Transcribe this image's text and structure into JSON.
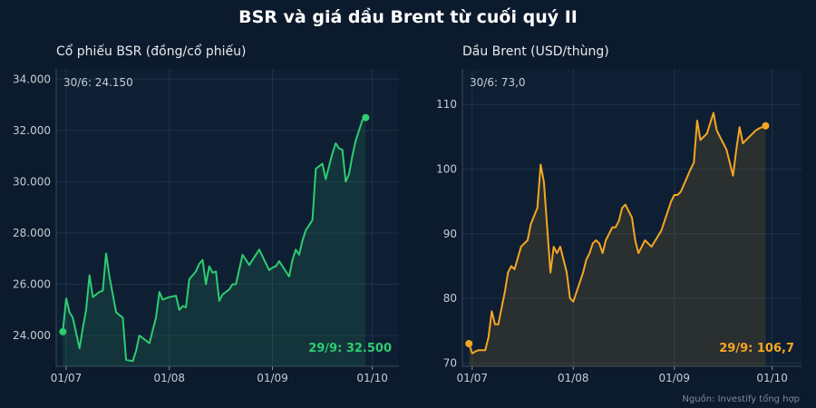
{
  "title": "BSR và giá dầu Brent từ cuối quý II",
  "source": "Nguồn: Investify tổng hợp",
  "chart_data": [
    {
      "type": "area",
      "title": "Cổ phiếu BSR (đồng/cổ phiếu)",
      "color": "#2ecc71",
      "ylim": [
        22800,
        34400
      ],
      "yticks": [
        24000,
        26000,
        28000,
        30000,
        32000,
        34000
      ],
      "ytick_labels": [
        "24.000",
        "26.000",
        "28.000",
        "30.000",
        "32.000",
        "34.000"
      ],
      "xlim": [
        -2,
        101
      ],
      "xticks": [
        1,
        32,
        63,
        93
      ],
      "xtick_labels": [
        "01/07",
        "01/08",
        "01/09",
        "01/10"
      ],
      "grid": true,
      "annotations": {
        "start_label": "30/6: 24.150",
        "end_label": "29/9: 32.500"
      },
      "x": [
        0,
        1,
        2,
        3,
        5,
        6,
        7,
        8,
        9,
        10,
        11,
        12,
        13,
        14,
        16,
        17,
        18,
        19,
        21,
        22,
        23,
        24,
        25,
        26,
        27,
        28,
        29,
        30,
        31,
        32,
        34,
        35,
        36,
        37,
        38,
        39,
        40,
        41,
        42,
        43,
        44,
        45,
        46,
        47,
        48,
        49,
        50,
        51,
        52,
        54,
        56,
        59,
        62,
        63,
        64,
        65,
        68,
        69,
        70,
        71,
        72,
        73,
        75,
        76,
        77,
        78,
        79,
        80,
        81,
        82,
        83,
        84,
        85,
        86,
        87,
        88,
        89,
        90,
        91
      ],
      "y": [
        24150,
        25450,
        24900,
        24700,
        23500,
        24300,
        25000,
        26350,
        25500,
        25600,
        25700,
        25750,
        27200,
        26300,
        24900,
        24800,
        24700,
        23050,
        23000,
        23400,
        24000,
        23900,
        23800,
        23700,
        24200,
        24700,
        25700,
        25400,
        25450,
        25500,
        25550,
        25000,
        25150,
        25100,
        26200,
        26350,
        26500,
        26800,
        26950,
        26000,
        26700,
        26450,
        26500,
        25350,
        25600,
        25700,
        25800,
        26000,
        26000,
        27150,
        26750,
        27350,
        26550,
        26650,
        26700,
        26900,
        26300,
        26950,
        27350,
        27150,
        27700,
        28100,
        28500,
        30500,
        30600,
        30700,
        30100,
        30600,
        31100,
        31500,
        31300,
        31250,
        30000,
        30300,
        31000,
        31600,
        32000,
        32400,
        32500
      ]
    },
    {
      "type": "area",
      "title": "Dầu Brent (USD/thùng)",
      "color": "#f5a623",
      "ylim": [
        69.5,
        115.5
      ],
      "yticks": [
        70,
        80,
        90,
        100,
        110
      ],
      "ytick_labels": [
        "70",
        "80",
        "90",
        "100",
        "110"
      ],
      "xlim": [
        -2,
        102
      ],
      "xticks": [
        1,
        32,
        63,
        93
      ],
      "xtick_labels": [
        "01/07",
        "01/08",
        "01/09",
        "01/10"
      ],
      "grid": true,
      "annotations": {
        "start_label": "30/6: 73,0",
        "end_label": "29/9: 106,7"
      },
      "x": [
        0,
        1,
        2,
        3,
        5,
        6,
        7,
        8,
        9,
        10,
        11,
        12,
        13,
        14,
        16,
        17,
        18,
        19,
        21,
        22,
        23,
        24,
        25,
        26,
        27,
        28,
        29,
        30,
        31,
        32,
        34,
        35,
        36,
        37,
        38,
        39,
        40,
        41,
        42,
        43,
        44,
        45,
        46,
        47,
        48,
        49,
        50,
        51,
        52,
        54,
        56,
        59,
        62,
        63,
        64,
        65,
        68,
        69,
        70,
        71,
        72,
        73,
        75,
        76,
        77,
        78,
        79,
        80,
        81,
        82,
        83,
        84,
        85,
        86,
        87,
        88,
        89,
        90,
        91
      ],
      "y": [
        73.0,
        71.5,
        71.8,
        72.0,
        72.0,
        74.0,
        78.0,
        76.0,
        76.0,
        78.5,
        81.0,
        84.0,
        85.0,
        84.5,
        88.0,
        88.5,
        89.0,
        91.5,
        94.0,
        100.7,
        98.0,
        91.0,
        84.0,
        88.0,
        87.0,
        88.0,
        86.0,
        84.0,
        80.0,
        79.5,
        82.5,
        84.0,
        86.0,
        87.0,
        88.5,
        89.0,
        88.5,
        87.0,
        89.0,
        90.0,
        91.0,
        91.0,
        92.0,
        94.0,
        94.5,
        93.5,
        92.5,
        89.0,
        87.0,
        89.0,
        88.0,
        90.5,
        95.0,
        96.0,
        96.0,
        96.5,
        100.0,
        101.0,
        107.5,
        104.5,
        105.0,
        105.5,
        108.7,
        106.0,
        105.0,
        104.0,
        103.0,
        101.0,
        99.0,
        103.0,
        106.5,
        104.0,
        104.5,
        105.0,
        105.5,
        106.0,
        106.3,
        106.5,
        106.7
      ]
    }
  ]
}
